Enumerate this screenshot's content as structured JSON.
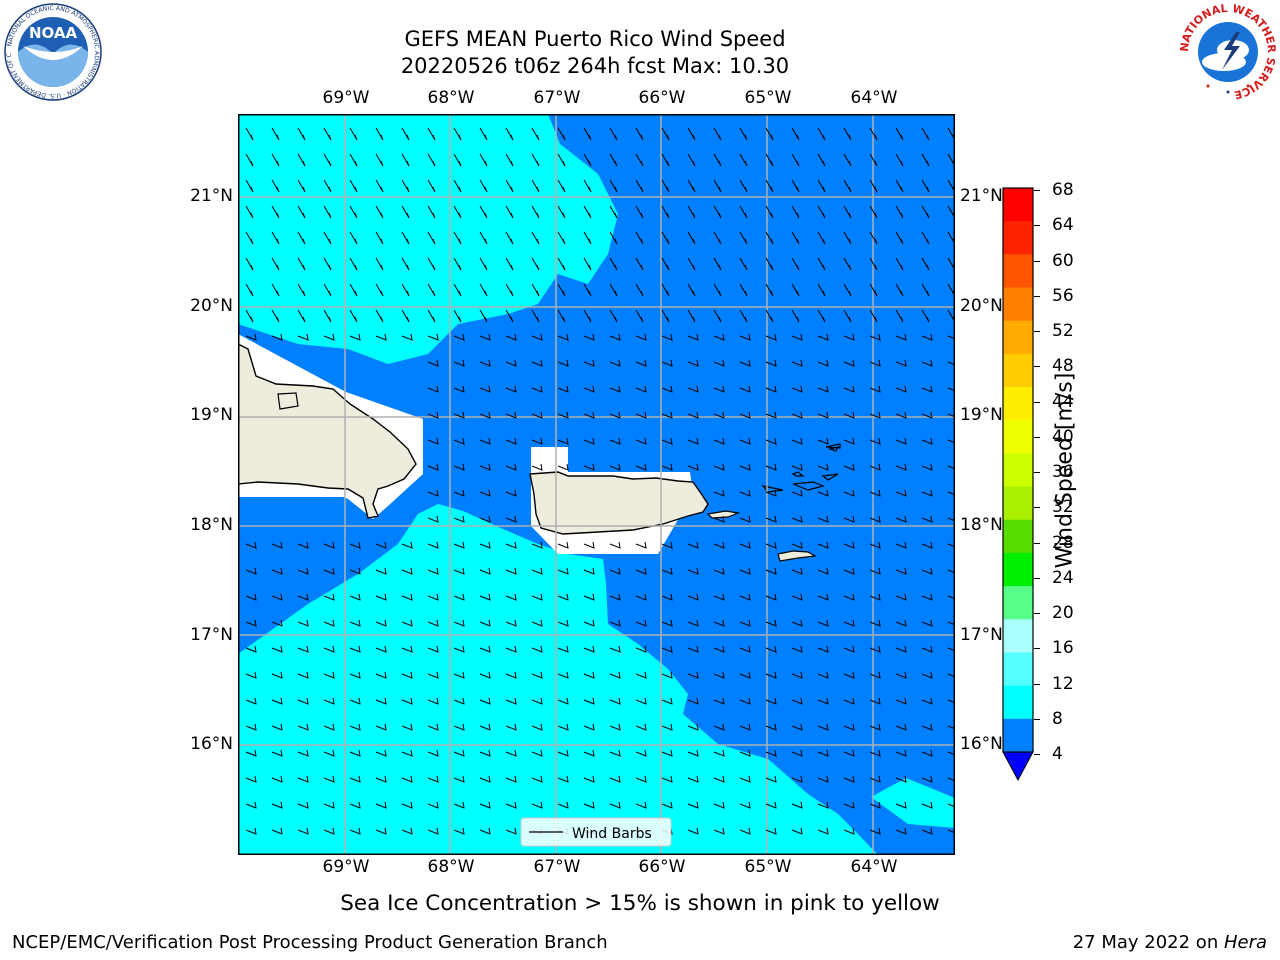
{
  "title": {
    "line1": "GEFS MEAN Puerto Rico Wind Speed",
    "line2": "20220526 t06z 264h fcst   Max: 10.30"
  },
  "logos": {
    "left": {
      "text": "NOAA",
      "ring_text": "NATIONAL OCEANIC AND ATMOSPHERIC ADMINISTRATION · U.S. DEPARTMENT OF COMMERCE"
    },
    "right": {
      "ring_text": "NATIONAL WEATHER SERVICE"
    }
  },
  "map": {
    "lon_labels": [
      "69°W",
      "68°W",
      "67°W",
      "66°W",
      "65°W",
      "64°W"
    ],
    "lat_labels": [
      "21°N",
      "20°N",
      "19°N",
      "18°N",
      "17°N",
      "16°N"
    ],
    "lon_range": [
      -70.0,
      -63.3
    ],
    "lat_range": [
      15.0,
      21.75
    ],
    "gridlines": true,
    "features": [
      "Hispaniola (east)",
      "Puerto Rico",
      "Virgin Islands"
    ],
    "legend": {
      "label": "Wind Barbs",
      "placement": "bottom-center"
    },
    "colors": {
      "ocean_low": "#00ffff",
      "ocean_mid": "#0080ff",
      "land": "#eeecdc",
      "no_data": "#ffffff",
      "grid": "#b0b0b0"
    }
  },
  "colorbar": {
    "label": "Wind Speed [m/s]",
    "ticks": [
      "68",
      "64",
      "60",
      "56",
      "52",
      "48",
      "44",
      "40",
      "36",
      "32",
      "28",
      "24",
      "20",
      "16",
      "12",
      "8",
      "4"
    ],
    "colors_top_to_bottom": [
      "#ff0000",
      "#ff2400",
      "#ff5500",
      "#ff8000",
      "#ffaa00",
      "#ffcc00",
      "#ffee00",
      "#eeff00",
      "#ccff00",
      "#aaee00",
      "#55dd00",
      "#00ee00",
      "#55ff88",
      "#aaffff",
      "#55ffff",
      "#00ffff",
      "#0080ff"
    ],
    "extend_color": "#0000ff"
  },
  "chart_data": {
    "type": "heatmap",
    "title": "GEFS MEAN Puerto Rico Wind Speed",
    "subtitle": "20220526 t06z 264h fcst   Max: 10.30",
    "variable": "Wind Speed",
    "units": "m/s",
    "max": 10.3,
    "levels": [
      4,
      8,
      12,
      16,
      20,
      24,
      28,
      32,
      36,
      40,
      44,
      48,
      52,
      56,
      60,
      64,
      68
    ],
    "note": "Sea Ice Concentration > 15% is shown in pink to yellow"
  },
  "caption": "Sea Ice Concentration > 15% is shown in pink to yellow",
  "footer": {
    "left": "NCEP/EMC/Verification Post Processing Product Generation Branch",
    "date": "27 May 2022 on ",
    "machine": "Hera"
  }
}
